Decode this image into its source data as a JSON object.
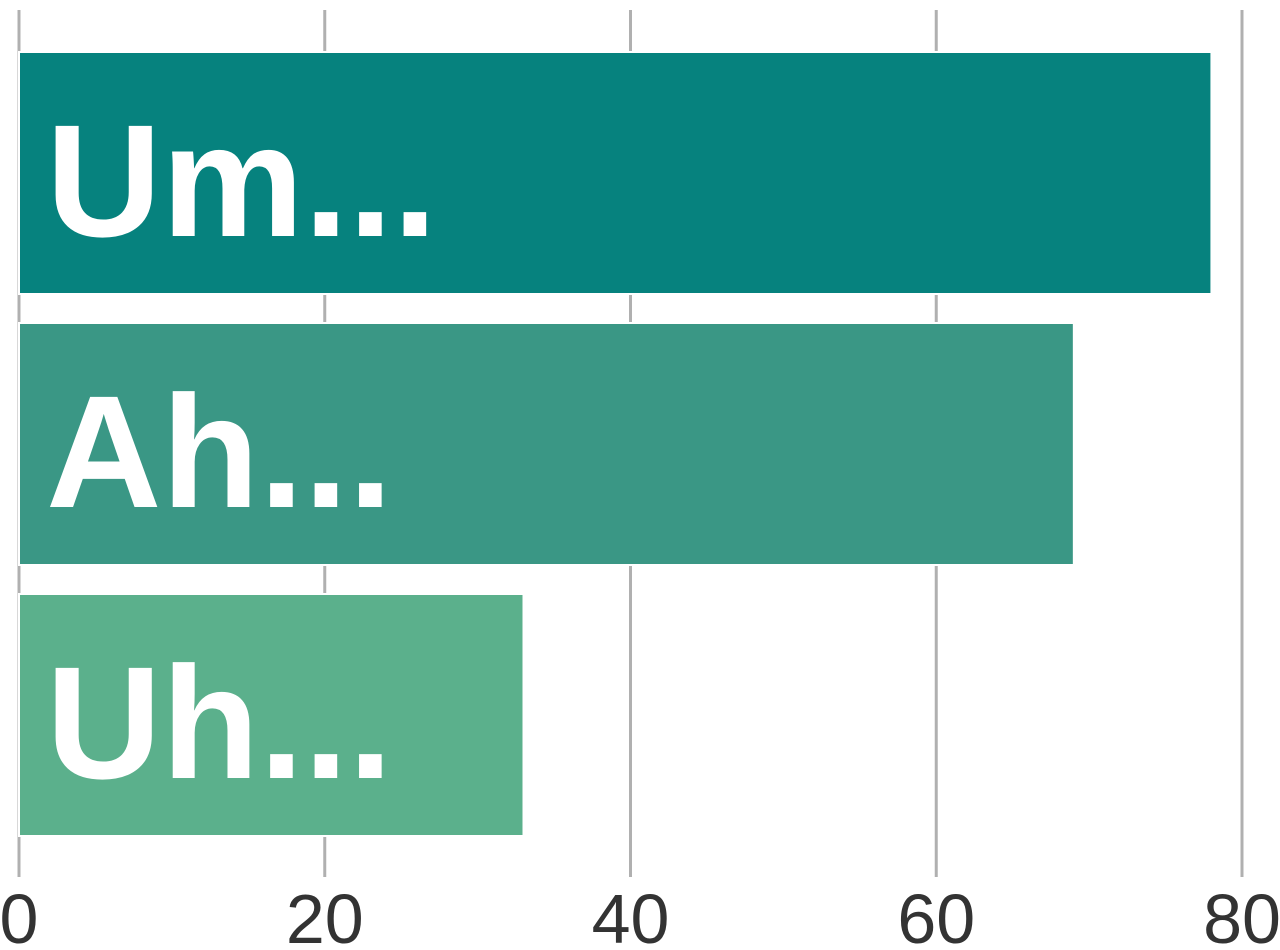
{
  "chart_data": {
    "type": "bar",
    "orientation": "horizontal",
    "categories": [
      "Um...",
      "Ah...",
      "Uh..."
    ],
    "values": [
      78,
      69,
      33
    ],
    "colors": [
      "#06827e",
      "#3a9785",
      "#5bb08c"
    ],
    "xlim": [
      0,
      80
    ],
    "xticks": [
      "0",
      "20",
      "40",
      "60",
      "80"
    ],
    "grid": true,
    "title": "",
    "xlabel": "",
    "ylabel": ""
  }
}
